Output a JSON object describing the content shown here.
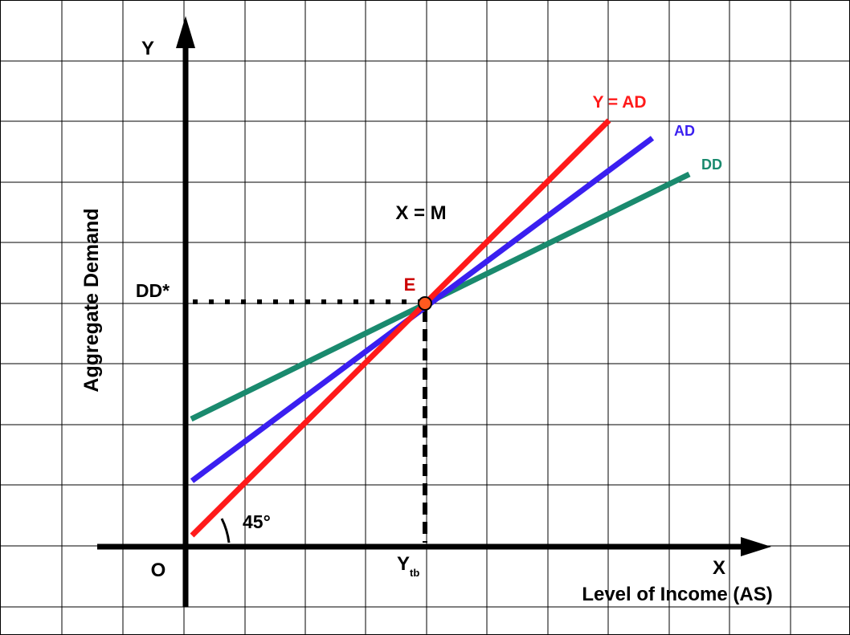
{
  "axes": {
    "y_letter": "Y",
    "x_letter": "X",
    "origin": "O",
    "y_title": "Aggregate Demand",
    "x_title": "Level of Income (AS)"
  },
  "lines": {
    "y_eq_ad": {
      "label": "Y = AD",
      "color": "#ff1a1a"
    },
    "ad": {
      "label": "AD",
      "color": "#3a1ff0"
    },
    "dd": {
      "label": "DD",
      "color": "#1a8a6e"
    }
  },
  "annotations": {
    "balance_condition": "X = M",
    "equilibrium": "E",
    "equilibrium_color": "#cc0000",
    "dd_star": "DD*",
    "angle": "45°",
    "ytb_main": "Y",
    "ytb_sub": "tb"
  },
  "colors": {
    "grid": "#000000",
    "axis": "#000000",
    "point_fill": "#ff5a1f"
  }
}
